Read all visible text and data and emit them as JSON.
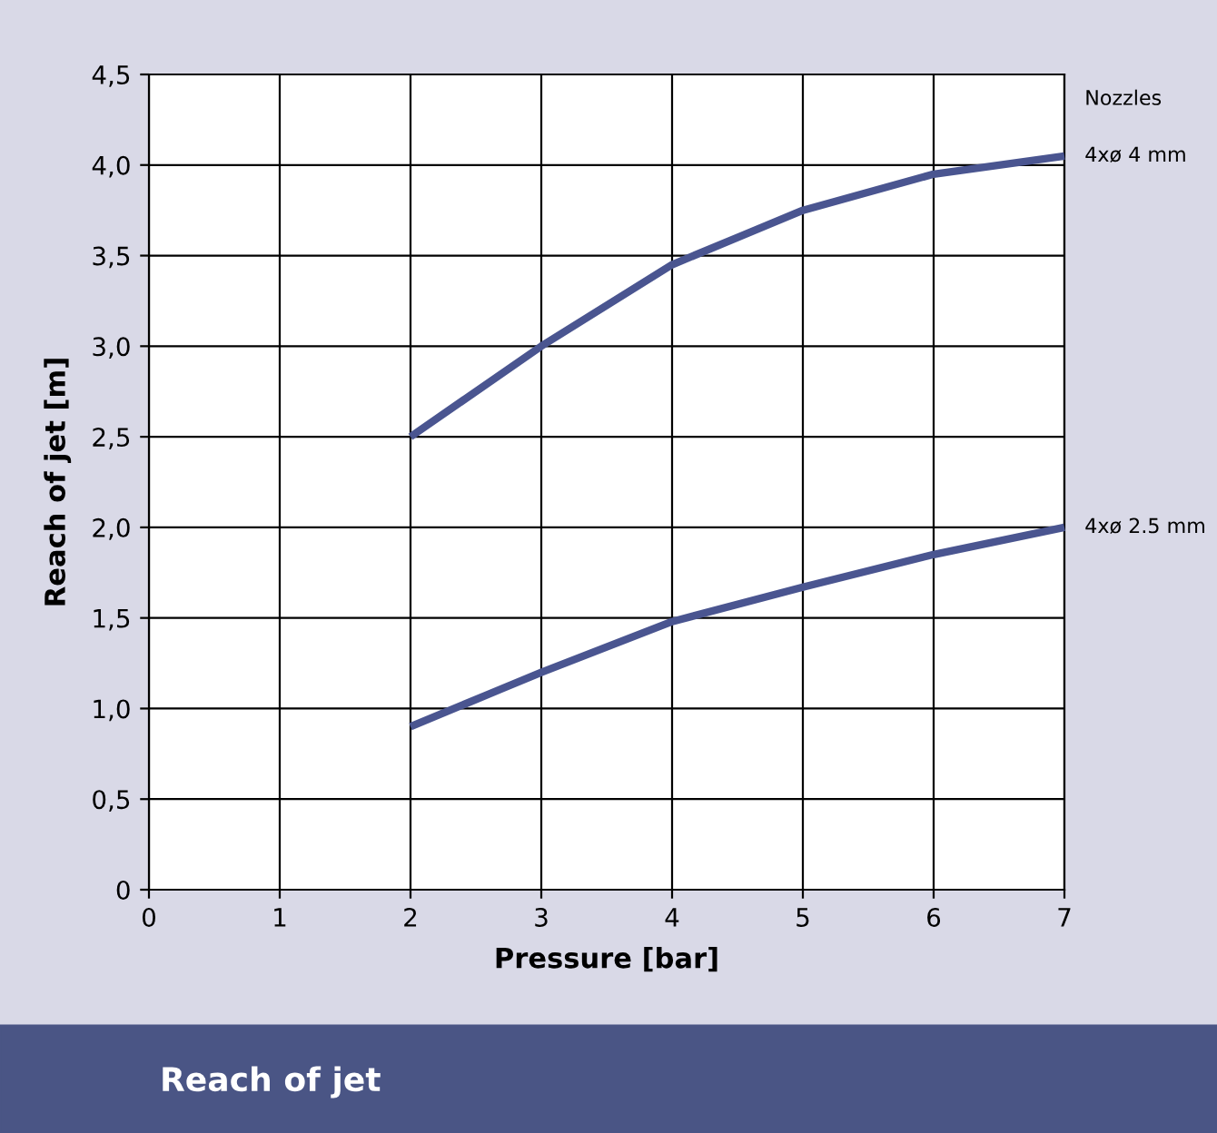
{
  "chart_data": {
    "type": "line",
    "title": "Reach of jet",
    "xlabel": "Pressure [bar]",
    "ylabel": "Reach of jet [m]",
    "legend_title": "Nozzles",
    "x": [
      2,
      3,
      4,
      5,
      6,
      7
    ],
    "series": [
      {
        "name": "4xø 4 mm",
        "color": "#4a5590",
        "values": [
          2.5,
          3.0,
          3.45,
          3.75,
          3.95,
          4.05
        ]
      },
      {
        "name": "4xø 2.5 mm",
        "color": "#4a5590",
        "values": [
          0.9,
          1.2,
          1.48,
          1.67,
          1.85,
          2.0
        ]
      }
    ],
    "xlim": [
      0,
      7
    ],
    "xticks": [
      0,
      1,
      2,
      3,
      4,
      5,
      6,
      7
    ],
    "ylim": [
      0,
      4.5
    ],
    "yticks": [
      0,
      {
        "value": 0.5,
        "label": "0,5"
      },
      {
        "value": 1.0,
        "label": "1,0"
      },
      {
        "value": 1.5,
        "label": "1,5"
      },
      {
        "value": 2.0,
        "label": "2,0"
      },
      {
        "value": 2.5,
        "label": "2,5"
      },
      {
        "value": 3.0,
        "label": "3,0"
      },
      {
        "value": 3.5,
        "label": "3,5"
      },
      {
        "value": 4.0,
        "label": "4,0"
      },
      {
        "value": 4.5,
        "label": "4,5"
      }
    ],
    "grid": true,
    "legend": "right",
    "marker": "none",
    "line_style": "solid"
  }
}
